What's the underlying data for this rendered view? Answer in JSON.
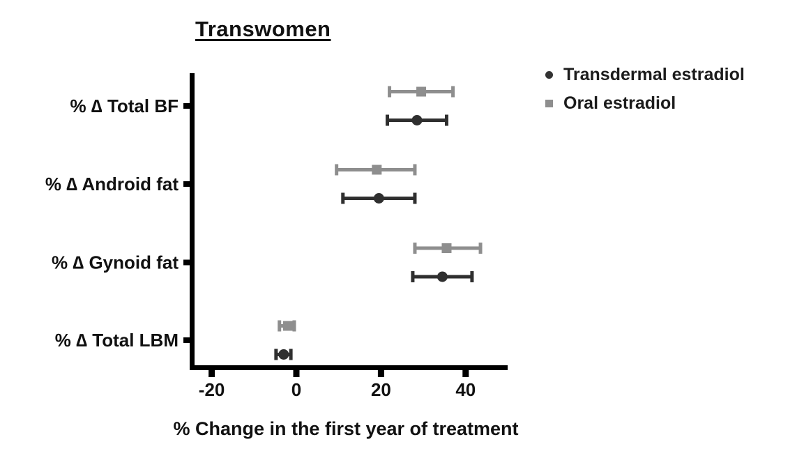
{
  "title": "Transwomen",
  "legend": {
    "position": "top-right",
    "items": [
      {
        "label": "Transdermal estradiol",
        "marker": "circle",
        "color": "#333333"
      },
      {
        "label": "Oral estradiol",
        "marker": "square",
        "color": "#8e8e8e"
      }
    ]
  },
  "chart_data": {
    "type": "scatter",
    "subtype": "horizontal-dot-plot-with-error-bars",
    "title": "Transwomen",
    "xlabel": "% Change in the first year of treatment",
    "ylabel": "",
    "categories": [
      "% ∆ Total BF",
      "% ∆ Android fat",
      "% ∆ Gynoid fat",
      "% ∆ Total LBM"
    ],
    "xticks": [
      -20,
      0,
      20,
      40
    ],
    "xlim": [
      -25,
      50
    ],
    "grid": false,
    "series": [
      {
        "name": "Oral estradiol",
        "marker": "square",
        "color": "#8e8e8e",
        "row_position": "above",
        "values": [
          29.5,
          19.0,
          35.5,
          -2.0
        ],
        "ci_low": [
          22.0,
          9.5,
          28.0,
          -4.0
        ],
        "ci_high": [
          37.0,
          28.0,
          43.5,
          -0.5
        ]
      },
      {
        "name": "Transdermal estradiol",
        "marker": "circle",
        "color": "#2f2f2f",
        "row_position": "below",
        "values": [
          28.5,
          19.5,
          34.5,
          -3.0
        ],
        "ci_low": [
          21.5,
          11.0,
          27.5,
          -4.8
        ],
        "ci_high": [
          35.5,
          28.0,
          41.5,
          -1.3
        ]
      }
    ]
  }
}
